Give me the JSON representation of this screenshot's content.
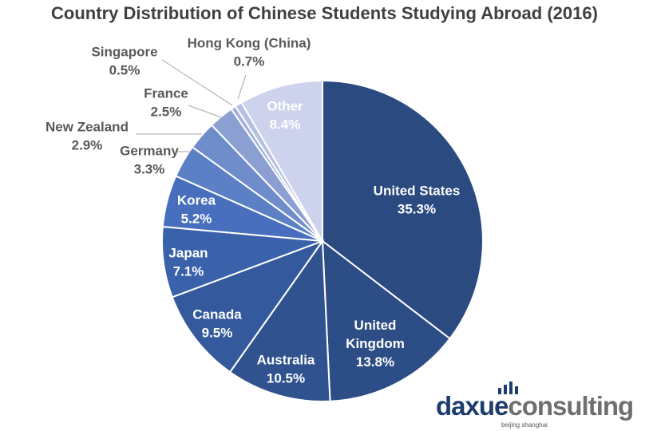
{
  "chart_data": {
    "type": "pie",
    "title": "Country Distribution of Chinese Students Studying Abroad (2016)",
    "slices": [
      {
        "label": "United States",
        "label_lines": [
          "United States"
        ],
        "value": 35.3,
        "value_text": "35.3%",
        "color": "#2b4a80",
        "label_color": "#ffffff",
        "label_mode": "inside"
      },
      {
        "label": "United Kingdom",
        "label_lines": [
          "United",
          "Kingdom"
        ],
        "value": 13.8,
        "value_text": "13.8%",
        "color": "#2d4d86",
        "label_color": "#ffffff",
        "label_mode": "inside"
      },
      {
        "label": "Australia",
        "label_lines": [
          "Australia"
        ],
        "value": 10.5,
        "value_text": "10.5%",
        "color": "#30528f",
        "label_color": "#ffffff",
        "label_mode": "inside"
      },
      {
        "label": "Canada",
        "label_lines": [
          "Canada"
        ],
        "value": 9.5,
        "value_text": "9.5%",
        "color": "#34599c",
        "label_color": "#ffffff",
        "label_mode": "inside"
      },
      {
        "label": "Japan",
        "label_lines": [
          "Japan"
        ],
        "value": 7.1,
        "value_text": "7.1%",
        "color": "#3a62ab",
        "label_color": "#ffffff",
        "label_mode": "inside"
      },
      {
        "label": "Korea",
        "label_lines": [
          "Korea"
        ],
        "value": 5.2,
        "value_text": "5.2%",
        "color": "#476fbd",
        "label_color": "#ffffff",
        "label_mode": "inside"
      },
      {
        "label": "Germany",
        "label_lines": [
          "Germany"
        ],
        "value": 3.3,
        "value_text": "3.3%",
        "color": "#5b80c6",
        "label_color": "#595959",
        "label_mode": "outside"
      },
      {
        "label": "New Zealand",
        "label_lines": [
          "New Zealand"
        ],
        "value": 2.9,
        "value_text": "2.9%",
        "color": "#6f8ccb",
        "label_color": "#595959",
        "label_mode": "outside"
      },
      {
        "label": "France",
        "label_lines": [
          "France"
        ],
        "value": 2.5,
        "value_text": "2.5%",
        "color": "#8c9fd2",
        "label_color": "#595959",
        "label_mode": "outside"
      },
      {
        "label": "Singapore",
        "label_lines": [
          "Singapore"
        ],
        "value": 0.5,
        "value_text": "0.5%",
        "color": "#a3b1da",
        "label_color": "#595959",
        "label_mode": "outside"
      },
      {
        "label": "Hong Kong (China)",
        "label_lines": [
          "Hong Kong (China)"
        ],
        "value": 0.7,
        "value_text": "0.7%",
        "color": "#b4c0e2",
        "label_color": "#595959",
        "label_mode": "outside"
      },
      {
        "label": "Other",
        "label_lines": [
          "Other"
        ],
        "value": 8.4,
        "value_text": "8.4%",
        "color": "#cdd3ec",
        "label_color": "#ffffff",
        "label_mode": "inside"
      }
    ],
    "start_angle_deg": 0,
    "direction": "clockwise",
    "legend": "none",
    "data_labels": "category and percentage"
  },
  "logo": {
    "word_a": "daxue",
    "word_b": "consulting",
    "subtitle": "beijing shanghai"
  }
}
